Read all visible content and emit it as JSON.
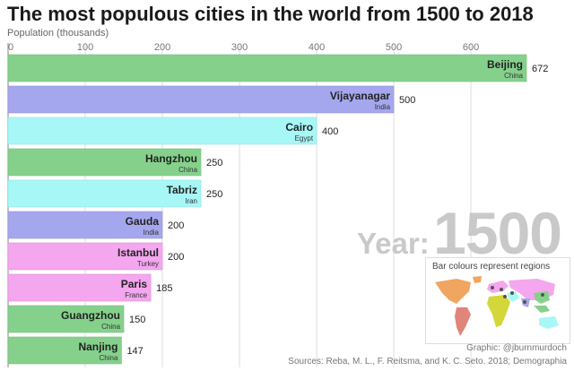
{
  "chart_data": {
    "type": "bar",
    "orientation": "horizontal",
    "title": "The most populous cities in the world from 1500 to 2018",
    "axis_label": "Population (thousands)",
    "xlim": [
      0,
      672
    ],
    "x_ticks": [
      0,
      100,
      200,
      300,
      400,
      500,
      600
    ],
    "grid": true,
    "year_prefix": "Year:",
    "year": "1500",
    "cities": [
      {
        "city": "Beijing",
        "country": "China",
        "value": 672,
        "region": "East Asia"
      },
      {
        "city": "Vijayanagar",
        "country": "India",
        "value": 500,
        "region": "South Asia"
      },
      {
        "city": "Cairo",
        "country": "Egypt",
        "value": 400,
        "region": "Middle East"
      },
      {
        "city": "Hangzhou",
        "country": "China",
        "value": 250,
        "region": "East Asia"
      },
      {
        "city": "Tabriz",
        "country": "Iran",
        "value": 250,
        "region": "Middle East"
      },
      {
        "city": "Gauda",
        "country": "India",
        "value": 200,
        "region": "South Asia"
      },
      {
        "city": "Istanbul",
        "country": "Turkey",
        "value": 200,
        "region": "Europe"
      },
      {
        "city": "Paris",
        "country": "France",
        "value": 185,
        "region": "Europe"
      },
      {
        "city": "Guangzhou",
        "country": "China",
        "value": 150,
        "region": "East Asia"
      },
      {
        "city": "Nanjing",
        "country": "China",
        "value": 147,
        "region": "East Asia"
      }
    ],
    "region_colors": {
      "East Asia": "#85d18c",
      "South Asia": "#a5a7ee",
      "Middle East": "#a7f7f7",
      "Europe": "#f4a6ee"
    },
    "legend_title": "Bar colours represent regions"
  },
  "credit": "Graphic: @jburnmurdoch",
  "sources": "Sources: Reba, M. L., F. Reitsma, and K. C. Seto. 2018; Demographia"
}
